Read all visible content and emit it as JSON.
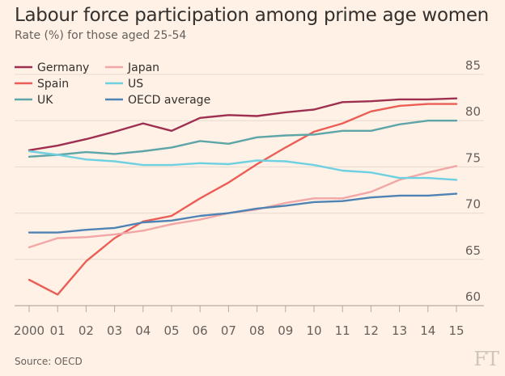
{
  "title": "Labour force participation among prime age women",
  "subtitle": "Rate (%) for those aged 25-54",
  "source": "Source: OECD",
  "logo": "FT",
  "chart_data": {
    "type": "line",
    "x": [
      2000,
      2001,
      2002,
      2003,
      2004,
      2005,
      2006,
      2007,
      2008,
      2009,
      2010,
      2011,
      2012,
      2013,
      2014,
      2015
    ],
    "x_tick_labels": [
      "2000",
      "01",
      "02",
      "03",
      "04",
      "05",
      "06",
      "07",
      "08",
      "09",
      "10",
      "11",
      "12",
      "13",
      "14",
      "15"
    ],
    "y_ticks": [
      60,
      65,
      70,
      75,
      80,
      85
    ],
    "ylim": [
      59.5,
      86
    ],
    "grid": true,
    "legend": "top-left",
    "series": [
      {
        "name": "Germany",
        "color": "#9e2f50",
        "values": [
          76.8,
          77.3,
          78.0,
          78.8,
          79.7,
          78.9,
          80.3,
          80.6,
          80.5,
          80.9,
          81.2,
          82.0,
          82.1,
          82.3,
          82.3,
          82.4
        ]
      },
      {
        "name": "Spain",
        "color": "#eb5e56",
        "values": [
          62.8,
          61.2,
          64.8,
          67.3,
          69.1,
          69.7,
          71.6,
          73.3,
          75.3,
          77.1,
          78.8,
          79.7,
          81.0,
          81.6,
          81.8,
          81.8
        ]
      },
      {
        "name": "UK",
        "color": "#5ea5a8",
        "values": [
          76.1,
          76.3,
          76.6,
          76.4,
          76.7,
          77.1,
          77.8,
          77.5,
          78.2,
          78.4,
          78.5,
          78.9,
          78.9,
          79.6,
          80.0,
          80.0
        ]
      },
      {
        "name": "Japan",
        "color": "#f2a6a6",
        "values": [
          66.3,
          67.3,
          67.4,
          67.7,
          68.1,
          68.8,
          69.3,
          70.0,
          70.4,
          71.1,
          71.6,
          71.6,
          72.3,
          73.6,
          74.4,
          75.1
        ]
      },
      {
        "name": "US",
        "color": "#6ed0e0",
        "values": [
          76.7,
          76.3,
          75.8,
          75.6,
          75.2,
          75.2,
          75.4,
          75.3,
          75.7,
          75.6,
          75.2,
          74.6,
          74.4,
          73.8,
          73.8,
          73.6
        ]
      },
      {
        "name": "OECD average",
        "color": "#4e83b4",
        "values": [
          67.9,
          67.9,
          68.2,
          68.4,
          69.0,
          69.2,
          69.7,
          70.0,
          70.5,
          70.8,
          71.2,
          71.3,
          71.7,
          71.9,
          71.9,
          72.1
        ]
      }
    ]
  }
}
